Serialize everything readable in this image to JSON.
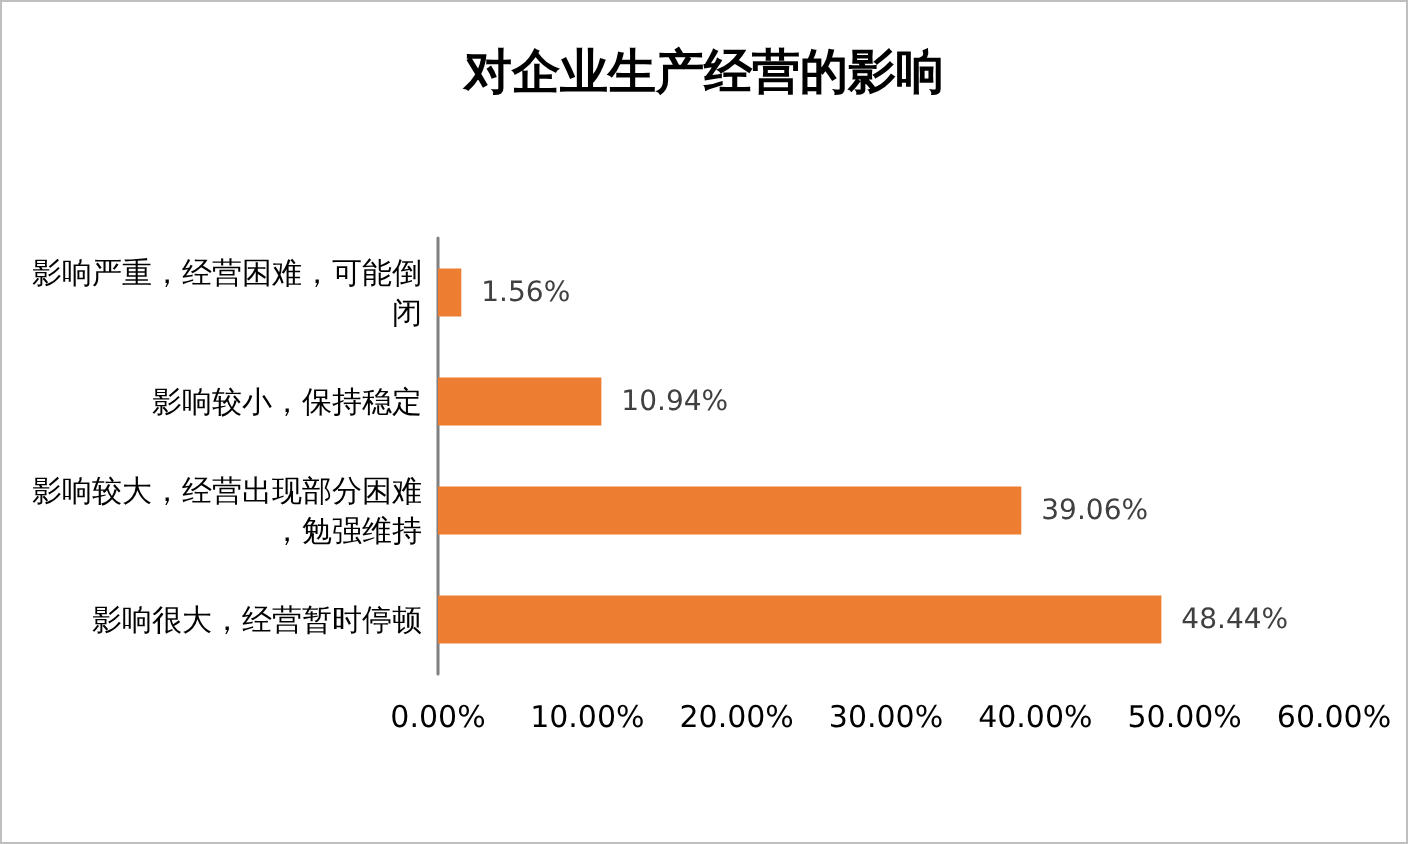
{
  "chart_data": {
    "type": "bar",
    "orientation": "horizontal",
    "title": "对企业生产经营的影响",
    "categories": [
      "影响严重，经营困难，可能倒闭",
      "影响较小，保持稳定",
      "影响较大，经营出现部分困难，勉强维持",
      "影响很大，经营暂时停顿"
    ],
    "values": [
      1.56,
      10.94,
      39.06,
      48.44
    ],
    "value_labels": [
      "1.56%",
      "10.94%",
      "39.06%",
      "48.44%"
    ],
    "color": "#ed7d31",
    "xlim": [
      0,
      60
    ],
    "xticks": [
      {
        "value": 0,
        "label": "0.00%"
      },
      {
        "value": 10,
        "label": "10.00%"
      },
      {
        "value": 20,
        "label": "20.00%"
      },
      {
        "value": 30,
        "label": "30.00%"
      },
      {
        "value": 40,
        "label": "40.00%"
      },
      {
        "value": 50,
        "label": "50.00%"
      },
      {
        "value": 60,
        "label": "60.00%"
      }
    ],
    "grid": false
  }
}
